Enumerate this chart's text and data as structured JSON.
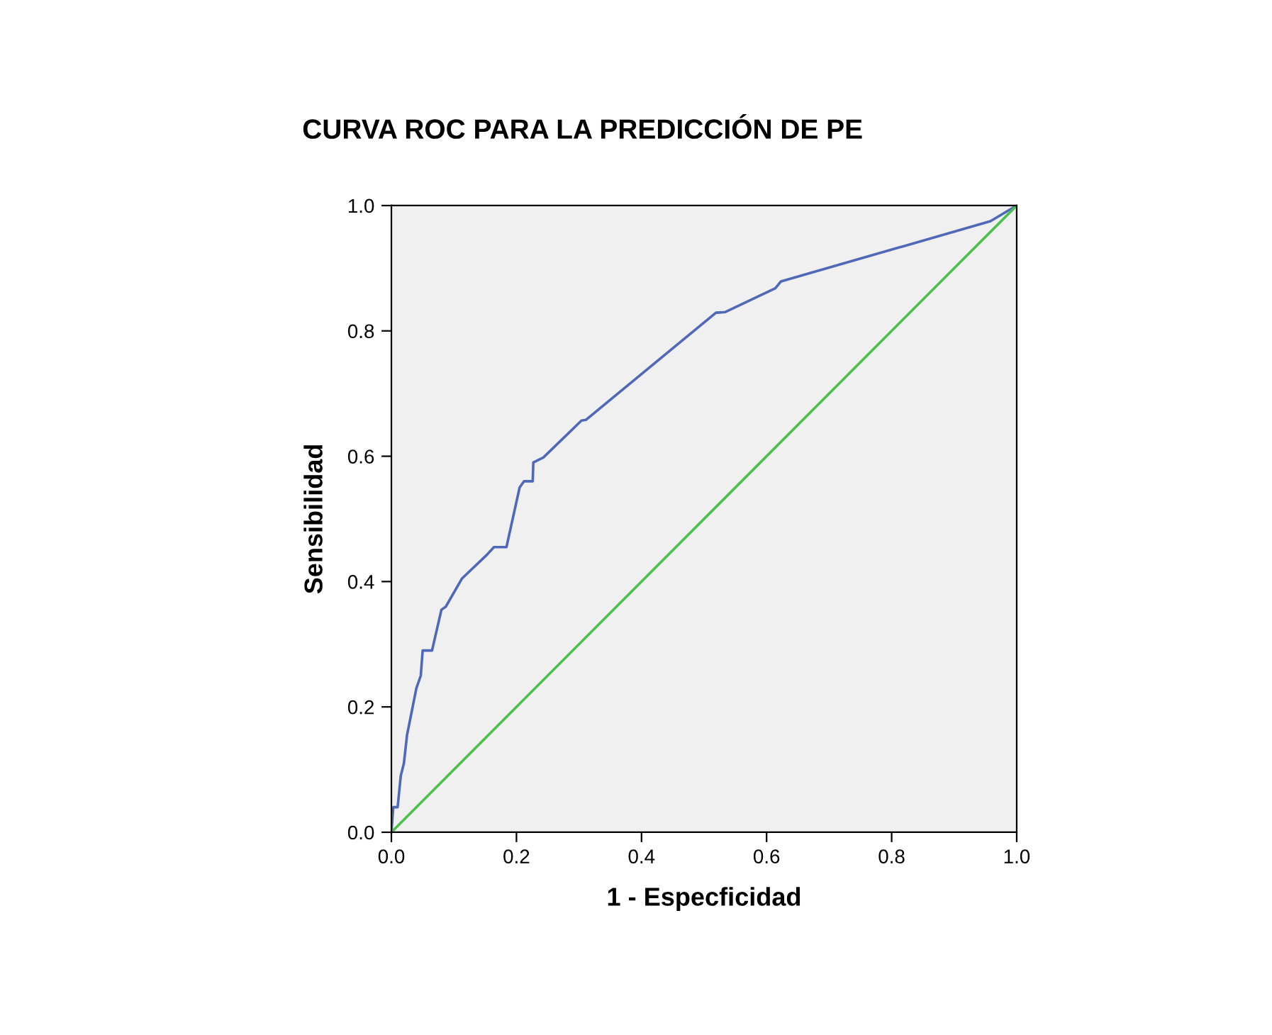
{
  "chart_data": {
    "type": "line",
    "title": "CURVA ROC PARA LA PREDICCIÓN DE PE",
    "xlabel": "1 - Especficidad",
    "ylabel": "Sensibilidad",
    "xlim": [
      0,
      1
    ],
    "ylim": [
      0,
      1
    ],
    "xticks": [
      {
        "value": 0,
        "label": "0.0"
      },
      {
        "value": 0.2,
        "label": "0.2"
      },
      {
        "value": 0.4,
        "label": "0.4"
      },
      {
        "value": 0.6,
        "label": "0.6"
      },
      {
        "value": 0.8,
        "label": "0.8"
      },
      {
        "value": 1,
        "label": "1.0"
      }
    ],
    "yticks": [
      {
        "value": 0,
        "label": "0.0"
      },
      {
        "value": 0.2,
        "label": "0.2"
      },
      {
        "value": 0.4,
        "label": "0.4"
      },
      {
        "value": 0.6,
        "label": "0.6"
      },
      {
        "value": 0.8,
        "label": "0.8"
      },
      {
        "value": 1,
        "label": "1.0"
      }
    ],
    "grid": false,
    "legend": false,
    "marker": "none",
    "line_style": "solid",
    "series": [
      {
        "color": "#5068b8",
        "x": [
          0,
          0.003,
          0.01,
          0.015,
          0.02,
          0.025,
          0.033,
          0.04,
          0.047,
          0.05,
          0.065,
          0.08,
          0.087,
          0.113,
          0.153,
          0.164,
          0.184,
          0.205,
          0.212,
          0.226,
          0.227,
          0.243,
          0.304,
          0.311,
          0.519,
          0.534,
          0.614,
          0.623,
          0.958,
          1
        ],
        "values": [
          0,
          0.04,
          0.04,
          0.09,
          0.11,
          0.155,
          0.195,
          0.23,
          0.25,
          0.29,
          0.29,
          0.355,
          0.36,
          0.405,
          0.443,
          0.455,
          0.455,
          0.55,
          0.56,
          0.56,
          0.59,
          0.598,
          0.657,
          0.658,
          0.829,
          0.83,
          0.868,
          0.879,
          0.975,
          1
        ]
      },
      {
        "color": "#4cc04c",
        "x": [
          0,
          1
        ],
        "values": [
          0,
          1
        ]
      }
    ]
  }
}
